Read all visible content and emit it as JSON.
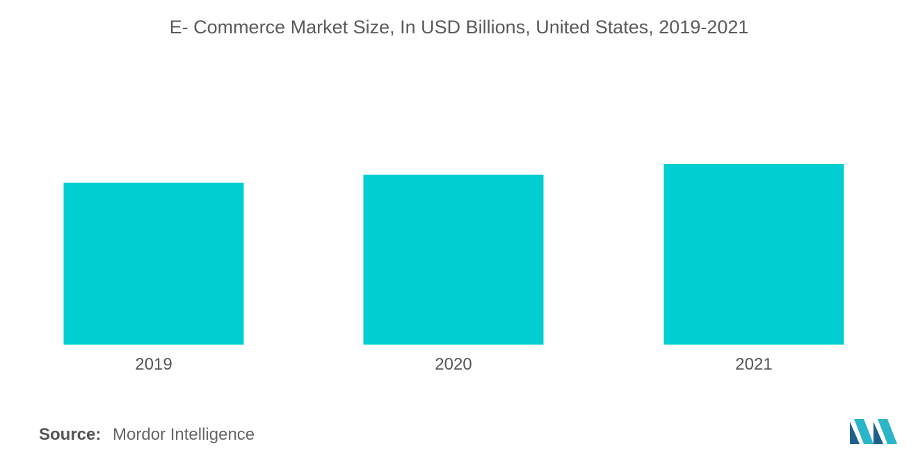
{
  "chart_data": {
    "type": "bar",
    "title": "E- Commerce Market Size, In USD Billions, United States, 2019-2021",
    "categories": [
      "2019",
      "2020",
      "2021"
    ],
    "values": [
      598,
      627,
      667
    ],
    "xlabel": "",
    "ylabel": "",
    "ylim": [
      0,
      667
    ],
    "grid": false,
    "legend": "none",
    "bar_color": "#00ced1"
  },
  "footer": {
    "source_label": "Source:",
    "source_value": "Mordor Intelligence"
  },
  "logo": {
    "icon": "mordor-intelligence-logo",
    "colors": [
      "#1f5f8b",
      "#2bb5c9"
    ]
  }
}
